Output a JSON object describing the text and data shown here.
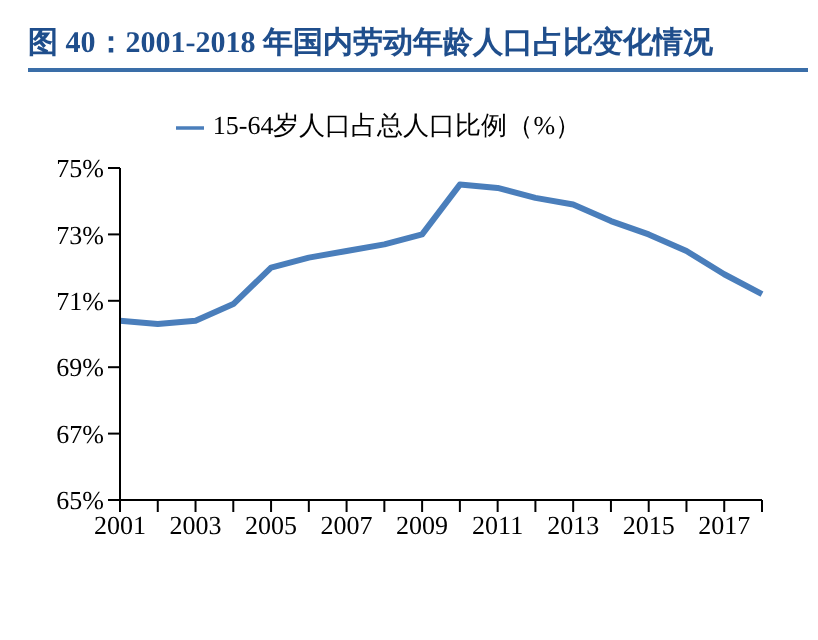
{
  "chart_data": {
    "type": "line",
    "title": "图 40：2001-2018 年国内劳动年龄人口占比变化情况",
    "categories": [
      "2001",
      null,
      "2003",
      null,
      "2005",
      null,
      "2007",
      null,
      "2009",
      null,
      "2011",
      null,
      "2013",
      null,
      "2015",
      null,
      "2017",
      null
    ],
    "series": [
      {
        "name": "15-64岁人口占总人口比例（%）",
        "color": "#4a7ebb",
        "values": [
          70.4,
          70.3,
          70.4,
          70.9,
          72.0,
          72.3,
          72.5,
          72.7,
          73.0,
          74.5,
          74.4,
          74.1,
          73.9,
          73.4,
          73.0,
          72.5,
          71.8,
          71.2
        ]
      }
    ],
    "ylim": [
      65,
      75
    ],
    "yticks": [
      {
        "value": 65,
        "label": "65%"
      },
      {
        "value": 67,
        "label": "67%"
      },
      {
        "value": 69,
        "label": "69%"
      },
      {
        "value": 71,
        "label": "71%"
      },
      {
        "value": 73,
        "label": "73%"
      },
      {
        "value": 75,
        "label": "75%"
      }
    ],
    "legend": "top",
    "grid": false,
    "marker": "none",
    "line_style": "solid"
  }
}
